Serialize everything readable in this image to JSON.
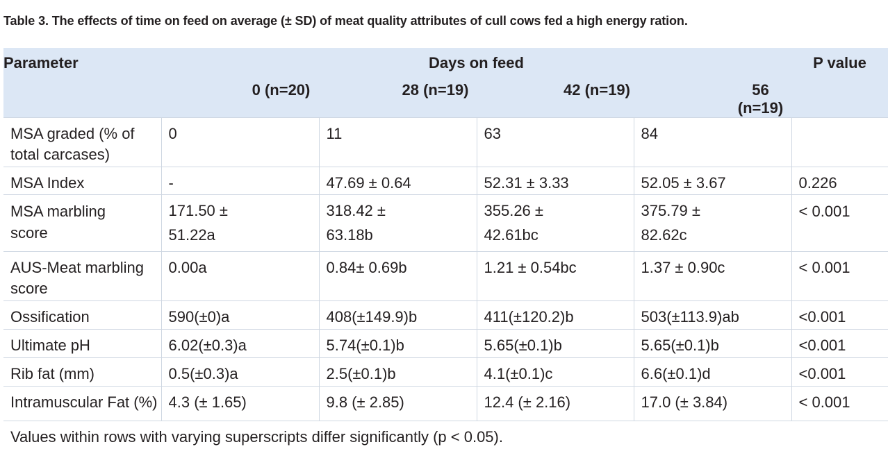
{
  "caption": "Table 3. The effects of time on feed on average (± SD) of meat quality attributes of cull cows fed a high energy ration.",
  "header": {
    "parameter": "Parameter",
    "days_on_feed": "Days on feed",
    "p_value": "P value",
    "groups": [
      "0 (n=20)",
      "28 (n=19)",
      "42 (n=19)",
      "56 (n=19)"
    ]
  },
  "rows": [
    {
      "param": "MSA graded (% of total carcases)",
      "d0": "0",
      "d28": "11",
      "d42": "63",
      "d56": "84",
      "p": ""
    },
    {
      "param": "MSA Index",
      "d0": "-",
      "d28": "47.69 ± 0.64",
      "d42": "52.31 ± 3.33",
      "d56": "52.05 ± 3.67",
      "p": "0.226"
    },
    {
      "param_a": "MSA marbling",
      "param_b": "score",
      "d0_a": "171.50 ±",
      "d0_b": "51.22a",
      "d28_a": "318.42 ±",
      "d28_b": "63.18b",
      "d42_a": "355.26 ±",
      "d42_b": "42.61bc",
      "d56_a": "375.79 ±",
      "d56_b": "82.62c",
      "p": "< 0.001"
    },
    {
      "param": "AUS-Meat marbling score",
      "d0": "0.00a",
      "d28": "0.84± 0.69b",
      "d42": "1.21 ± 0.54bc",
      "d56": "1.37 ± 0.90c",
      "p": "< 0.001"
    },
    {
      "param": "Ossification",
      "d0": "590(±0)a",
      "d28": "408(±149.9)b",
      "d42": "411(±120.2)b",
      "d56": "503(±113.9)ab",
      "p": "<0.001"
    },
    {
      "param": "Ultimate pH",
      "d0": "6.02(±0.3)a",
      "d28": "5.74(±0.1)b",
      "d42": "5.65(±0.1)b",
      "d56": "5.65(±0.1)b",
      "p": "<0.001"
    },
    {
      "param": "Rib fat (mm)",
      "d0": "0.5(±0.3)a",
      "d28": "2.5(±0.1)b",
      "d42": "4.1(±0.1)c",
      "d56": "6.6(±0.1)d",
      "p": "<0.001"
    },
    {
      "param": "Intramuscular Fat (%)",
      "d0": "4.3 (± 1.65)",
      "d28": "9.8 (± 2.85)",
      "d42": "12.4 (± 2.16)",
      "d56": "17.0 (± 3.84)",
      "p": "< 0.001"
    }
  ],
  "footnote": "Values within rows with varying superscripts differ significantly (p < 0.05)."
}
